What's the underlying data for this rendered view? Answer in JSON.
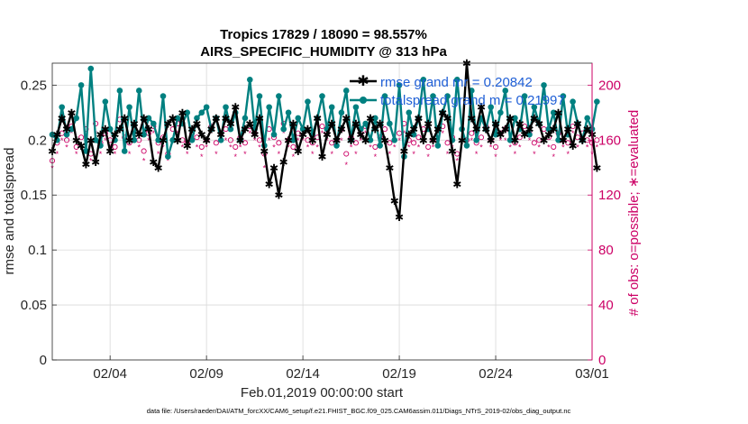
{
  "chart_data": {
    "type": "line",
    "title": "Tropics 17829 / 18090 = 98.557%",
    "subtitle": "AIRS_SPECIFIC_HUMIDITY @ 313 hPa",
    "xlabel": "Feb.01,2019 00:00:00 start",
    "ylabel_left": "rmse and totalspread",
    "ylabel_right": "# of obs: o=possible; ∗=evaluated",
    "footnote": "data file: /Users/raeder/DAI/ATM_forcXX/CAM6_setup/f.e21.FHIST_BGC.f09_025.CAM6assim.011/Diags_NTrS_2019-02/obs_diag_output.nc",
    "xlim": [
      1,
      29
    ],
    "ylim_left": [
      0,
      0.27
    ],
    "ylim_right": [
      0,
      216
    ],
    "xticks": [
      {
        "value": 4,
        "label": "02/04"
      },
      {
        "value": 9,
        "label": "02/09"
      },
      {
        "value": 14,
        "label": "02/14"
      },
      {
        "value": 19,
        "label": "02/19"
      },
      {
        "value": 24,
        "label": "02/24"
      },
      {
        "value": 29,
        "label": "03/01"
      }
    ],
    "yticks_left": [
      {
        "value": 0,
        "label": "0"
      },
      {
        "value": 0.05,
        "label": "0.05"
      },
      {
        "value": 0.1,
        "label": "0.1"
      },
      {
        "value": 0.15,
        "label": "0.15"
      },
      {
        "value": 0.2,
        "label": "0.2"
      },
      {
        "value": 0.25,
        "label": "0.25"
      }
    ],
    "yticks_right": [
      {
        "value": 0,
        "label": "0"
      },
      {
        "value": 40,
        "label": "40"
      },
      {
        "value": 80,
        "label": "80"
      },
      {
        "value": 120,
        "label": "120"
      },
      {
        "value": 160,
        "label": "160"
      },
      {
        "value": 200,
        "label": "200"
      }
    ],
    "grid": true,
    "legend_position": "top-right",
    "colors": {
      "rmse": "#000000",
      "spread": "#008080",
      "obs": "#cc0066",
      "legend_text": "#1f5fd6",
      "axis_right": "#cc0066"
    },
    "series": [
      {
        "name": "rmse grand mean = 0.20842",
        "legend_label": "rmse grand mr = 0.20842",
        "marker": "star",
        "color": "#000000",
        "x_start": 1,
        "x_step": 0.25,
        "values": [
          0.19,
          0.205,
          0.22,
          0.21,
          0.225,
          0.2,
          0.195,
          0.178,
          0.2,
          0.18,
          0.205,
          0.21,
          0.19,
          0.205,
          0.21,
          0.22,
          0.2,
          0.215,
          0.205,
          0.22,
          0.21,
          0.18,
          0.175,
          0.2,
          0.215,
          0.22,
          0.2,
          0.225,
          0.195,
          0.21,
          0.215,
          0.205,
          0.2,
          0.21,
          0.22,
          0.205,
          0.22,
          0.215,
          0.23,
          0.2,
          0.21,
          0.215,
          0.205,
          0.22,
          0.19,
          0.16,
          0.175,
          0.15,
          0.18,
          0.2,
          0.215,
          0.19,
          0.205,
          0.21,
          0.2,
          0.22,
          0.185,
          0.205,
          0.215,
          0.2,
          0.21,
          0.22,
          0.2,
          0.215,
          0.205,
          0.2,
          0.22,
          0.21,
          0.215,
          0.2,
          0.175,
          0.145,
          0.13,
          0.19,
          0.205,
          0.21,
          0.22,
          0.2,
          0.215,
          0.2,
          0.21,
          0.225,
          0.22,
          0.19,
          0.16,
          0.2,
          0.27,
          0.22,
          0.21,
          0.23,
          0.21,
          0.2,
          0.215,
          0.205,
          0.21,
          0.22,
          0.2,
          0.215,
          0.205,
          0.21,
          0.22,
          0.215,
          0.2,
          0.205,
          0.21,
          0.225,
          0.2,
          0.21,
          0.195,
          0.215,
          0.2,
          0.21,
          0.205,
          0.175
        ]
      },
      {
        "name": "totalspread grand mean = 0.21997",
        "legend_label": "totalspread grand m = 0.21997",
        "marker": "dot",
        "color": "#008080",
        "x_start": 1,
        "x_step": 0.25,
        "values": [
          0.205,
          0.2,
          0.23,
          0.205,
          0.21,
          0.22,
          0.25,
          0.19,
          0.265,
          0.2,
          0.195,
          0.235,
          0.21,
          0.2,
          0.245,
          0.19,
          0.23,
          0.2,
          0.245,
          0.205,
          0.22,
          0.215,
          0.2,
          0.24,
          0.185,
          0.2,
          0.22,
          0.215,
          0.225,
          0.2,
          0.22,
          0.225,
          0.23,
          0.21,
          0.22,
          0.2,
          0.23,
          0.21,
          0.225,
          0.2,
          0.22,
          0.255,
          0.21,
          0.24,
          0.195,
          0.23,
          0.205,
          0.24,
          0.21,
          0.225,
          0.2,
          0.22,
          0.21,
          0.235,
          0.205,
          0.22,
          0.24,
          0.21,
          0.23,
          0.195,
          0.225,
          0.245,
          0.2,
          0.23,
          0.21,
          0.215,
          0.2,
          0.22,
          0.195,
          0.24,
          0.215,
          0.2,
          0.25,
          0.185,
          0.225,
          0.205,
          0.22,
          0.255,
          0.21,
          0.24,
          0.195,
          0.225,
          0.24,
          0.2,
          0.255,
          0.21,
          0.195,
          0.245,
          0.2,
          0.22,
          0.21,
          0.23,
          0.205,
          0.225,
          0.245,
          0.2,
          0.22,
          0.21,
          0.24,
          0.205,
          0.23,
          0.215,
          0.25,
          0.21,
          0.225,
          0.2,
          0.24,
          0.205,
          0.235,
          0.215,
          0.2,
          0.22,
          0.21,
          0.235
        ]
      },
      {
        "name": "obs possible",
        "marker": "circle",
        "color": "#cc0066",
        "axis": "right",
        "x_start": 1,
        "x_step": 0.25,
        "values": [
          145,
          158,
          165,
          160,
          170,
          155,
          162,
          168,
          150,
          172,
          158,
          165,
          160,
          155,
          175,
          162,
          158,
          168,
          160,
          152,
          165,
          170,
          158,
          162,
          150,
          168,
          172,
          160,
          158,
          165,
          162,
          155,
          160,
          170,
          158,
          165,
          168,
          160,
          155,
          162,
          158,
          170,
          165,
          160,
          150,
          168,
          162,
          158,
          172,
          160,
          155,
          165,
          168,
          160,
          158,
          162,
          170,
          165,
          158,
          160,
          168,
          150,
          162,
          158,
          165,
          170,
          160,
          155,
          162,
          168,
          158,
          160,
          165,
          172,
          160,
          158,
          162,
          168,
          155,
          160,
          165,
          170,
          158,
          162,
          150,
          168,
          160,
          165,
          158,
          162,
          170,
          160,
          155,
          165,
          168,
          160,
          158,
          162,
          170,
          165,
          158,
          160,
          168,
          162,
          155,
          165,
          160,
          158,
          170,
          162,
          165,
          160,
          158,
          160
        ]
      },
      {
        "name": "obs evaluated",
        "marker": "asterisk",
        "color": "#cc0066",
        "axis": "right",
        "x_start": 1,
        "x_step": 0.25,
        "values": [
          140,
          150,
          160,
          155,
          165,
          150,
          155,
          160,
          145,
          165,
          150,
          160,
          155,
          150,
          168,
          155,
          150,
          160,
          155,
          145,
          160,
          165,
          150,
          155,
          145,
          160,
          165,
          155,
          150,
          160,
          155,
          148,
          155,
          165,
          150,
          160,
          160,
          155,
          148,
          155,
          150,
          165,
          160,
          155,
          140,
          160,
          155,
          150,
          165,
          155,
          148,
          160,
          160,
          155,
          150,
          155,
          165,
          160,
          150,
          155,
          160,
          142,
          155,
          150,
          160,
          165,
          155,
          148,
          155,
          160,
          150,
          155,
          160,
          165,
          155,
          150,
          155,
          160,
          148,
          155,
          160,
          165,
          150,
          155,
          145,
          160,
          155,
          160,
          150,
          155,
          165,
          155,
          148,
          160,
          160,
          155,
          150,
          155,
          165,
          160,
          150,
          155,
          160,
          155,
          148,
          160,
          155,
          150,
          165,
          155,
          160,
          155,
          150,
          155
        ]
      }
    ]
  }
}
